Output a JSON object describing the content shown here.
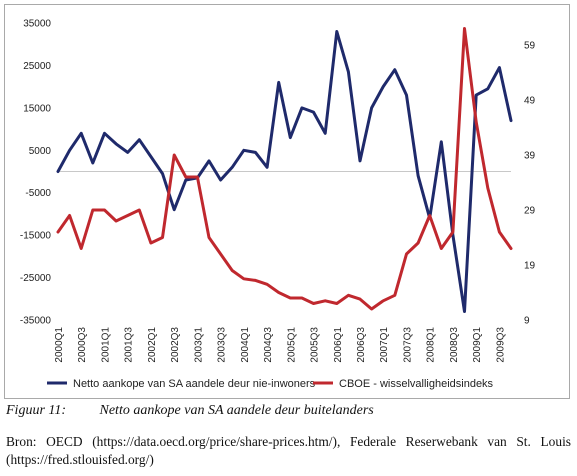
{
  "figure": {
    "label": "Figuur 11:",
    "title": "Netto aankope van SA aandele deur buitelanders",
    "source": "Bron: OECD (https://data.oecd.org/price/share-prices.htm/), Federale Reserwebank van St. Louis (https://fred.stlouisfed.org/)"
  },
  "chart_data": {
    "type": "line",
    "x": [
      "2000Q1",
      "2000Q2",
      "2000Q3",
      "2000Q4",
      "2001Q1",
      "2001Q2",
      "2001Q3",
      "2001Q4",
      "2002Q1",
      "2002Q2",
      "2002Q3",
      "2002Q4",
      "2003Q1",
      "2003Q2",
      "2003Q3",
      "2003Q4",
      "2004Q1",
      "2004Q2",
      "2004Q3",
      "2004Q4",
      "2005Q1",
      "2005Q2",
      "2005Q3",
      "2005Q4",
      "2006Q1",
      "2006Q2",
      "2006Q3",
      "2006Q4",
      "2007Q1",
      "2007Q2",
      "2007Q3",
      "2007Q4",
      "2008Q1",
      "2008Q2",
      "2008Q3",
      "2008Q4",
      "2009Q1",
      "2009Q2",
      "2009Q3",
      "2009Q4"
    ],
    "x_tick_labels": [
      "2000Q1",
      "2000Q3",
      "2001Q1",
      "2001Q3",
      "2002Q1",
      "2002Q3",
      "2003Q1",
      "2003Q3",
      "2004Q1",
      "2004Q3",
      "2005Q1",
      "2005Q3",
      "2006Q1",
      "2006Q3",
      "2007Q1",
      "2007Q3",
      "2008Q1",
      "2008Q3",
      "2009Q1",
      "2009Q3"
    ],
    "y_left": {
      "ylim": [
        -35000,
        35000
      ],
      "ticks": [
        35000,
        25000,
        15000,
        5000,
        -5000,
        -15000,
        -25000,
        -35000
      ]
    },
    "y_right": {
      "ylim": [
        9,
        63
      ],
      "ticks": [
        59,
        49,
        39,
        29,
        19,
        9
      ]
    },
    "zero_line": true,
    "grid": false,
    "legend_position": "bottom",
    "series": [
      {
        "name": "Netto aankope van SA aandele deur nie-inwoners",
        "color": "#1f2a6b",
        "axis": "left",
        "values": [
          0,
          5000,
          9000,
          2000,
          9000,
          6500,
          4500,
          7500,
          3500,
          -500,
          -9000,
          -2000,
          -1500,
          2500,
          -2000,
          1000,
          5000,
          4500,
          1000,
          21000,
          8000,
          15000,
          14000,
          9000,
          33000,
          23500,
          2500,
          15000,
          20000,
          24000,
          18000,
          -1000,
          -11000,
          7000,
          -15000,
          -33000,
          18000,
          19500,
          24500,
          12000
        ]
      },
      {
        "name": "CBOE - wisselvalligheidsindeks",
        "color": "#c0282e",
        "axis": "right",
        "values": [
          25,
          28,
          22,
          29,
          29,
          27,
          28,
          29,
          23,
          24,
          39,
          35,
          35,
          24,
          21,
          18,
          16.5,
          16.2,
          15.5,
          14,
          13,
          13,
          12,
          12.5,
          12,
          13.5,
          12.8,
          11,
          12.5,
          13.5,
          21,
          23,
          28,
          22,
          25,
          62,
          45,
          33,
          25,
          22
        ]
      }
    ]
  }
}
